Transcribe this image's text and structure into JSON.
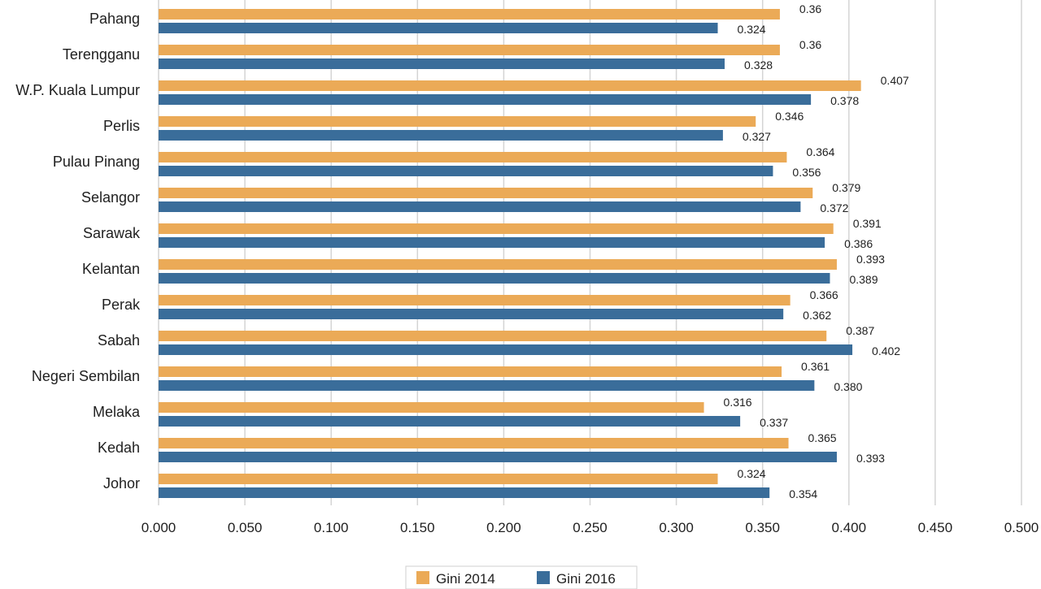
{
  "chart_data": {
    "type": "bar",
    "orientation": "horizontal",
    "categories": [
      "Pahang",
      "Terengganu",
      "W.P. Kuala Lumpur",
      "Perlis",
      "Pulau Pinang",
      "Selangor",
      "Sarawak",
      "Kelantan",
      "Perak",
      "Sabah",
      "Negeri Sembilan",
      "Melaka",
      "Kedah",
      "Johor"
    ],
    "series": [
      {
        "name": "Gini 2014",
        "color": "#ebaa57",
        "values": [
          0.36,
          0.36,
          0.407,
          0.346,
          0.364,
          0.379,
          0.391,
          0.393,
          0.366,
          0.387,
          0.361,
          0.316,
          0.365,
          0.324
        ],
        "labels": [
          "0.36",
          "0.36",
          "0.407",
          "0.346",
          "0.364",
          "0.379",
          "0.391",
          "0.393",
          "0.366",
          "0.387",
          "0.361",
          "0.316",
          "0.365",
          "0.324"
        ]
      },
      {
        "name": "Gini 2016",
        "color": "#3a6d9a",
        "values": [
          0.324,
          0.328,
          0.378,
          0.327,
          0.356,
          0.372,
          0.386,
          0.389,
          0.362,
          0.402,
          0.38,
          0.337,
          0.393,
          0.354
        ],
        "labels": [
          "0.324",
          "0.328",
          "0.378",
          "0.327",
          "0.356",
          "0.372",
          "0.386",
          "0.389",
          "0.362",
          "0.402",
          "0.380",
          "0.337",
          "0.393",
          "0.354"
        ]
      }
    ],
    "xlim": [
      0,
      0.5
    ],
    "xticks": [
      "0.000",
      "0.050",
      "0.100",
      "0.150",
      "0.200",
      "0.250",
      "0.300",
      "0.350",
      "0.400",
      "0.450",
      "0.500"
    ],
    "grid": true,
    "legend_position": "bottom",
    "title": "",
    "xlabel": "",
    "ylabel": "",
    "gridline_color": "#d4d4d4"
  }
}
